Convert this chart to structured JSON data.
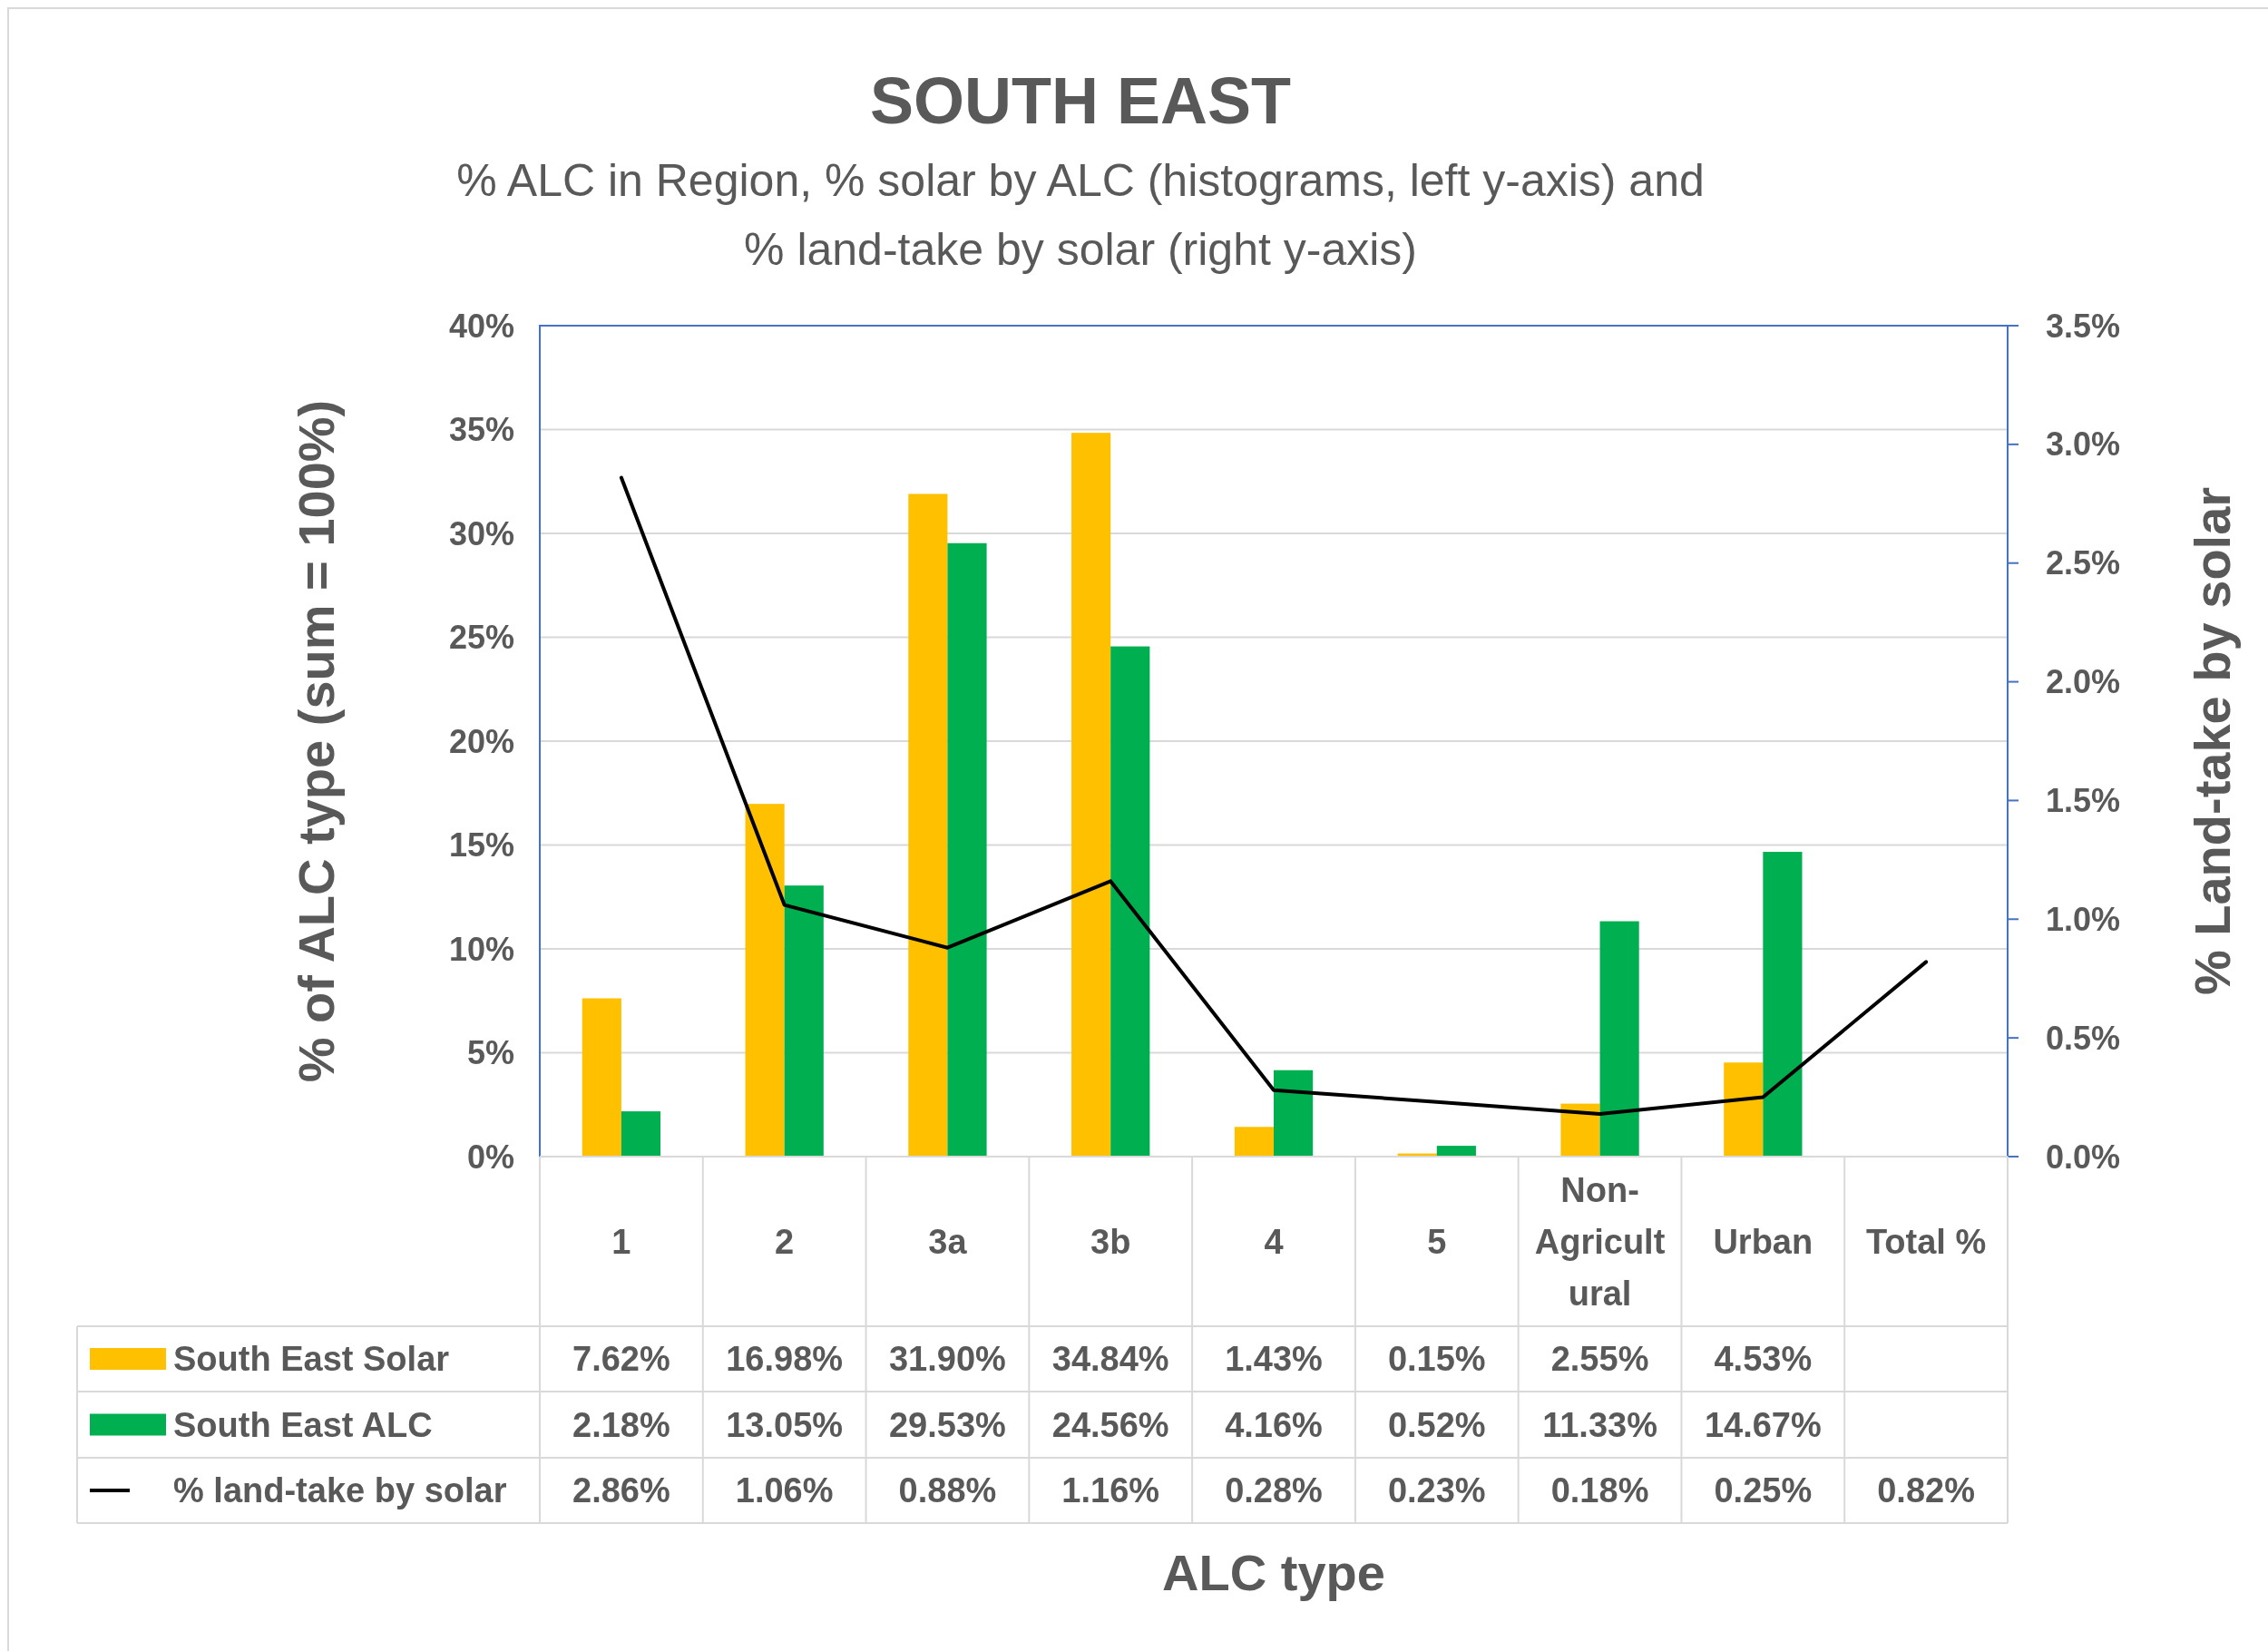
{
  "chart_data": {
    "type": "bar",
    "title": "SOUTH EAST",
    "subtitle": "% ALC in Region, % solar by ALC (histograms, left y-axis) and % land-take by solar (right y-axis)",
    "xlabel": "ALC type",
    "ylabel": "% of ALC type (sum = 100%)",
    "y2label": "% Land-take by solar",
    "categories": [
      "1",
      "2",
      "3a",
      "3b",
      "4",
      "5",
      "Non-Agricultural",
      "Urban",
      "Total %"
    ],
    "series": [
      {
        "name": "South East Solar",
        "color": "#ffc000",
        "values": [
          7.62,
          16.98,
          31.9,
          34.84,
          1.43,
          0.15,
          2.55,
          4.53,
          null
        ],
        "value_labels": [
          "7.62%",
          "16.98%",
          "31.90%",
          "34.84%",
          "1.43%",
          "0.15%",
          "2.55%",
          "4.53%",
          null
        ]
      },
      {
        "name": "South East ALC",
        "color": "#00b050",
        "values": [
          2.18,
          13.05,
          29.53,
          24.56,
          4.16,
          0.52,
          11.33,
          14.67,
          null
        ],
        "value_labels": [
          "2.18%",
          "13.05%",
          "29.53%",
          "24.56%",
          "4.16%",
          "0.52%",
          "11.33%",
          "14.67%",
          null
        ]
      },
      {
        "name": "% land-take by solar",
        "type": "line",
        "axis": "y2",
        "color": "#000000",
        "values": [
          2.86,
          1.06,
          0.88,
          1.16,
          0.28,
          0.23,
          0.18,
          0.25,
          0.82
        ],
        "value_labels": [
          "2.86%",
          "1.06%",
          "0.88%",
          "1.16%",
          "0.28%",
          "0.23%",
          "0.18%",
          "0.25%",
          "0.82%"
        ]
      }
    ],
    "ylim": [
      0,
      40
    ],
    "yticks": [
      {
        "value": 0,
        "label": "0%"
      },
      {
        "value": 5,
        "label": "5%"
      },
      {
        "value": 10,
        "label": "10%"
      },
      {
        "value": 15,
        "label": "15%"
      },
      {
        "value": 20,
        "label": "20%"
      },
      {
        "value": 25,
        "label": "25%"
      },
      {
        "value": 30,
        "label": "30%"
      },
      {
        "value": 35,
        "label": "35%"
      },
      {
        "value": 40,
        "label": "40%"
      }
    ],
    "y2lim": [
      0,
      3.5
    ],
    "y2ticks": [
      {
        "value": 0,
        "label": "0.0%"
      },
      {
        "value": 0.5,
        "label": "0.5%"
      },
      {
        "value": 1,
        "label": "1.0%"
      },
      {
        "value": 1.5,
        "label": "1.5%"
      },
      {
        "value": 2,
        "label": "2.0%"
      },
      {
        "value": 2.5,
        "label": "2.5%"
      },
      {
        "value": 3,
        "label": "3.0%"
      },
      {
        "value": 3.5,
        "label": "3.5%"
      }
    ],
    "grid": "y",
    "legend": "bottom",
    "marker": "none",
    "line_style": "solid"
  }
}
